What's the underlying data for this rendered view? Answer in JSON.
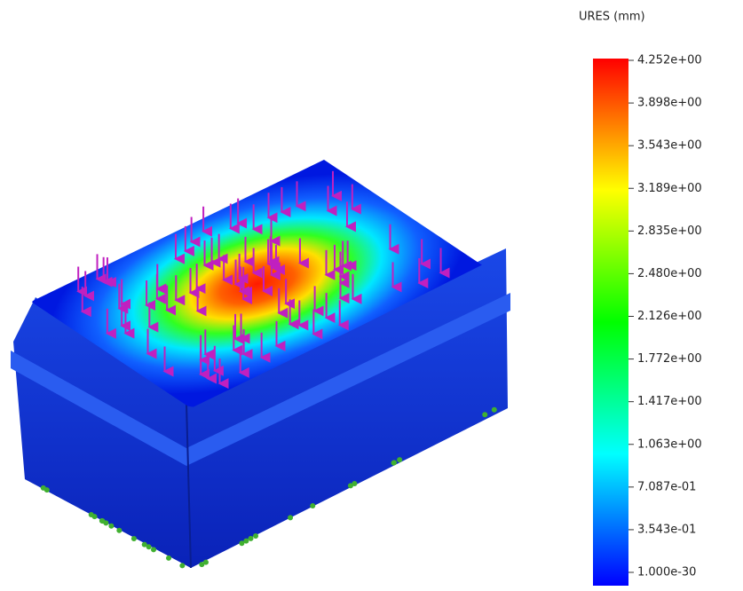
{
  "legend": {
    "title": "URES (mm)",
    "labels": [
      "4.252e+00",
      "3.898e+00",
      "3.543e+00",
      "3.189e+00",
      "2.835e+00",
      "2.480e+00",
      "2.126e+00",
      "1.772e+00",
      "1.417e+00",
      "1.063e+00",
      "7.087e-01",
      "3.543e-01",
      "1.000e-30"
    ]
  }
}
